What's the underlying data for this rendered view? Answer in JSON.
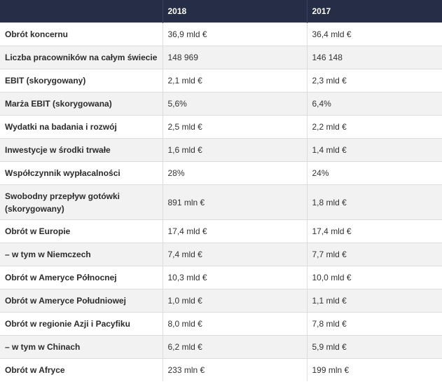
{
  "header": {
    "col_label": "",
    "col_2018": "2018",
    "col_2017": "2017"
  },
  "rows": [
    {
      "label": "Obrót koncernu",
      "v2018": "36,9 mld €",
      "v2017": "36,4 mld €"
    },
    {
      "label": "Liczba pracowników na całym świecie",
      "v2018": "148 969",
      "v2017": "146 148"
    },
    {
      "label": "EBIT (skorygowany)",
      "v2018": "2,1 mld €",
      "v2017": "2,3 mld €"
    },
    {
      "label": "Marża EBIT (skorygowana)",
      "v2018": "5,6%",
      "v2017": "6,4%"
    },
    {
      "label": "Wydatki na badania i rozwój",
      "v2018": "2,5 mld €",
      "v2017": "2,2 mld €"
    },
    {
      "label": "Inwestycje w środki trwałe",
      "v2018": "1,6 mld €",
      "v2017": "1,4 mld €"
    },
    {
      "label": "Współczynnik wypłacalności",
      "v2018": "28%",
      "v2017": "24%"
    },
    {
      "label": "Swobodny przepływ gotówki (skorygowany)",
      "v2018": "891 mln €",
      "v2017": "1,8 mld €"
    },
    {
      "label": "Obrót w Europie",
      "v2018": "17,4 mld €",
      "v2017": "17,4 mld €"
    },
    {
      "label": "– w tym w Niemczech",
      "v2018": "7,4 mld €",
      "v2017": "7,7 mld €"
    },
    {
      "label": "Obrót w Ameryce Północnej",
      "v2018": "10,3 mld €",
      "v2017": "10,0 mld €"
    },
    {
      "label": "Obrót w Ameryce Południowej",
      "v2018": "1,0 mld €",
      "v2017": "1,1 mld €"
    },
    {
      "label": "Obrót w regionie Azji i Pacyfiku",
      "v2018": "8,0 mld €",
      "v2017": "7,8 mld €"
    },
    {
      "label": "– w tym w Chinach",
      "v2018": "6,2 mld €",
      "v2017": "5,9 mld €"
    },
    {
      "label": "Obrót w Afryce",
      "v2018": "233 mln €",
      "v2017": "199 mln €"
    }
  ]
}
